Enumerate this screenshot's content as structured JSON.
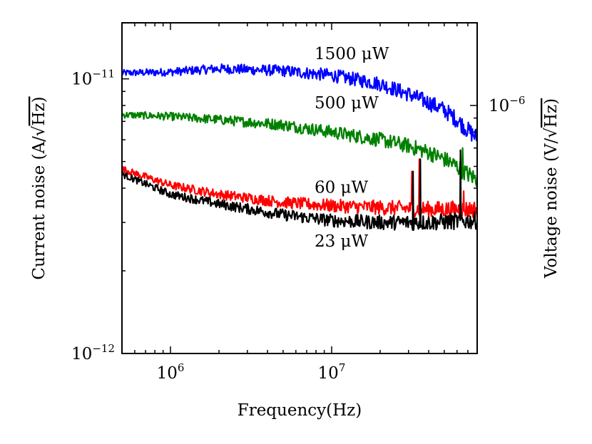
{
  "chart_data": {
    "type": "line",
    "xlabel": "Frequency(Hz)",
    "ylabel_left_main": "Current noise (A/",
    "ylabel_left_unit": "Hz)",
    "ylabel_right_main": "Voltage noise (V/",
    "ylabel_right_unit": "Hz)",
    "x_scale": "log",
    "y_scale": "log",
    "xlim": [
      500000,
      80000000
    ],
    "ylim_left": [
      1e-12,
      1.6e-11
    ],
    "x_ticks": [
      {
        "value": 1000000,
        "base": "10",
        "exp": "6"
      },
      {
        "value": 10000000,
        "base": "10",
        "exp": "7"
      }
    ],
    "y_ticks_left": [
      {
        "value": 1e-12,
        "base": "10",
        "exp": "−12"
      },
      {
        "value": 1e-11,
        "base": "10",
        "exp": "−11"
      }
    ],
    "y_tick_right": {
      "value_left_equiv": 8e-12,
      "base": "10",
      "exp": "−6"
    },
    "series": [
      {
        "name": "1500 μW",
        "color": "#0000ff",
        "label_at": [
          10000000,
          1.18e-11
        ],
        "anchor_hz": [
          500000,
          1000000,
          2000000,
          5000000,
          10000000,
          20000000,
          30000000,
          40000000,
          50000000,
          60000000,
          70000000,
          80000000
        ],
        "anchor_val": [
          1.05e-11,
          1.06e-11,
          1.09e-11,
          1.07e-11,
          1.03e-11,
          9.6e-12,
          8.8e-12,
          8.2e-12,
          7.7e-12,
          7.1e-12,
          6.5e-12,
          6.1e-12
        ]
      },
      {
        "name": "500 μW",
        "color": "#008000",
        "label_at": [
          10000000,
          7.8e-12
        ],
        "anchor_hz": [
          500000,
          1000000,
          2000000,
          5000000,
          10000000,
          20000000,
          30000000,
          40000000,
          50000000,
          60000000,
          70000000,
          80000000
        ],
        "anchor_val": [
          7.4e-12,
          7.3e-12,
          7.1e-12,
          6.8e-12,
          6.4e-12,
          6e-12,
          5.7e-12,
          5.4e-12,
          5.1e-12,
          4.8e-12,
          4.5e-12,
          4.3e-12
        ],
        "spikes": [
          [
            65000000,
            5.6e-12
          ]
        ]
      },
      {
        "name": "60 μW",
        "color": "#ff0000",
        "label_at": [
          10000000,
          3.85e-12
        ],
        "anchor_hz": [
          500000,
          1000000,
          2000000,
          5000000,
          10000000,
          20000000,
          40000000,
          80000000
        ],
        "anchor_val": [
          4.7e-12,
          4.1e-12,
          3.8e-12,
          3.55e-12,
          3.45e-12,
          3.4e-12,
          3.35e-12,
          3.35e-12
        ],
        "spikes": [
          [
            31500000,
            4.6e-12
          ],
          [
            35000000,
            5.1e-12
          ],
          [
            66000000,
            3.9e-12
          ]
        ]
      },
      {
        "name": "23 μW",
        "color": "#000000",
        "label_at": [
          10000000,
          2.45e-12
        ],
        "anchor_hz": [
          500000,
          1000000,
          2000000,
          5000000,
          10000000,
          20000000,
          40000000,
          80000000
        ],
        "anchor_val": [
          4.5e-12,
          3.8e-12,
          3.5e-12,
          3.2e-12,
          3.05e-12,
          3e-12,
          3e-12,
          3.05e-12
        ],
        "spikes": [
          [
            32000000,
            4.6e-12
          ],
          [
            35500000,
            5.1e-12
          ],
          [
            63000000,
            5.5e-12
          ]
        ]
      }
    ]
  }
}
